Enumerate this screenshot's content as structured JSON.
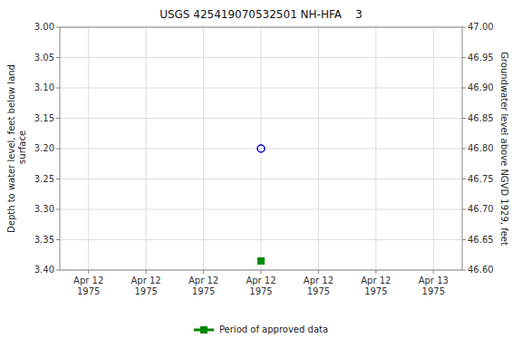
{
  "chart_data": {
    "type": "scatter",
    "title": "USGS 425419070532501 NH-HFA    3",
    "y_label": "Depth to water level, feet below land\n surface",
    "y2_label": "Groundwater level above NGVD 1929, feet",
    "categories": [
      "Apr 12\n1975",
      "Apr 12\n1975",
      "Apr 12\n1975",
      "Apr 12\n1975",
      "Apr 12\n1975",
      "Apr 12\n1975",
      "Apr 13\n1975"
    ],
    "series": [
      {
        "color": "#0000cc",
        "marker": "open_circle",
        "values": [
          null,
          null,
          null,
          3.2,
          null,
          null,
          null
        ]
      },
      {
        "name": "Period of approved data",
        "color": "#008800",
        "marker": "square",
        "values": [
          null,
          null,
          null,
          3.385,
          null,
          null,
          null
        ]
      }
    ],
    "ylim": [
      3.4,
      3.0
    ],
    "yticks": [
      {
        "value": 3.0,
        "label": "3.00"
      },
      3.05,
      {
        "value": 3.1,
        "label": "3.10"
      },
      3.15,
      {
        "value": 3.2,
        "label": "3.20"
      },
      3.25,
      {
        "value": 3.3,
        "label": "3.30"
      },
      3.35,
      {
        "value": 3.4,
        "label": "3.40"
      }
    ],
    "y2lim": [
      46.6,
      47.0
    ],
    "y2ticks": [
      {
        "value": 47.0,
        "label": "47.00"
      },
      46.95,
      {
        "value": 46.9,
        "label": "46.90"
      },
      46.85,
      {
        "value": 46.8,
        "label": "46.80"
      },
      46.75,
      {
        "value": 46.7,
        "label": "46.70"
      },
      46.65,
      {
        "value": 46.6,
        "label": "46.60"
      }
    ],
    "grid": true,
    "legend": "bottom"
  }
}
